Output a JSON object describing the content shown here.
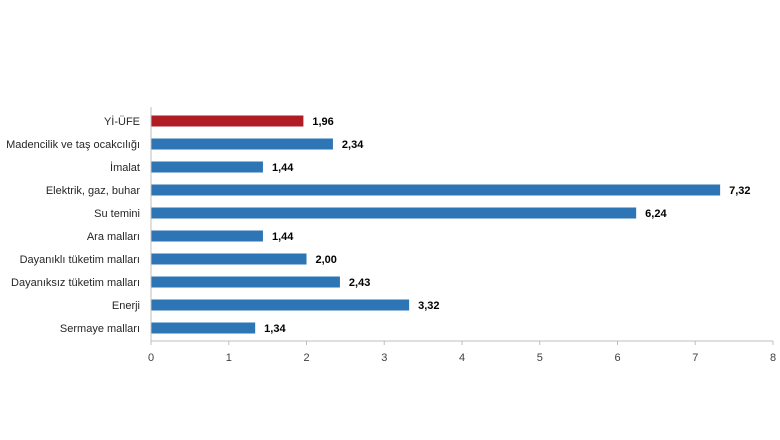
{
  "chart_data": {
    "type": "bar",
    "orientation": "horizontal",
    "categories": [
      "Yİ-ÜFE",
      "Madencilik ve taş ocakcılığı",
      "İmalat",
      "Elektrik, gaz, buhar",
      "Su temini",
      "Ara malları",
      "Dayanıklı tüketim malları",
      "Dayanıksız tüketim malları",
      "Enerji",
      "Sermaye malları"
    ],
    "values": [
      1.96,
      2.34,
      1.44,
      7.32,
      6.24,
      1.44,
      2.0,
      2.43,
      3.32,
      1.34
    ],
    "value_labels": [
      "1,96",
      "2,34",
      "1,44",
      "7,32",
      "6,24",
      "1,44",
      "2,00",
      "2,43",
      "3,32",
      "1,34"
    ],
    "xlim": [
      0,
      8
    ],
    "x_ticks": [
      "0",
      "1",
      "2",
      "3",
      "4",
      "5",
      "6",
      "7",
      "8"
    ],
    "grid": false,
    "title": "",
    "xlabel": "",
    "ylabel": "",
    "colors": {
      "highlight": "#b01c24",
      "bar": "#2e75b6",
      "axis": "#bfbfbf"
    },
    "highlight_index": 0
  }
}
